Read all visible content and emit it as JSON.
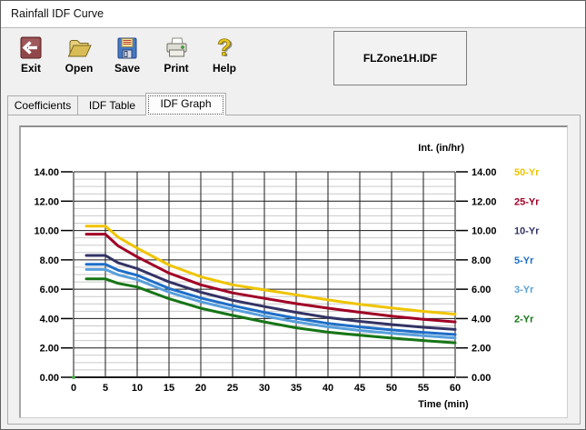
{
  "window": {
    "title": "Rainfall IDF Curve"
  },
  "toolbar": {
    "buttons": [
      {
        "label": "Exit"
      },
      {
        "label": "Open"
      },
      {
        "label": "Save"
      },
      {
        "label": "Print"
      },
      {
        "label": "Help"
      }
    ],
    "filename": "FLZone1H.IDF"
  },
  "tabs": [
    {
      "label": "Coefficients",
      "active": false
    },
    {
      "label": "IDF Table",
      "active": false
    },
    {
      "label": "IDF Graph",
      "active": true
    }
  ],
  "chart_data": {
    "type": "line",
    "y_axis_title": "Int. (in/hr)",
    "xlabel": "Time (min)",
    "ylim": [
      0,
      14
    ],
    "xlim": [
      0,
      60
    ],
    "y_major_step": 2,
    "y_minor_step": 0.5,
    "x_step": 5,
    "grid": true,
    "legend_position": "right",
    "y_ticks": [
      {
        "label": "14.00",
        "value": 14
      },
      {
        "label": "12.00",
        "value": 12
      },
      {
        "label": "10.00",
        "value": 10
      },
      {
        "label": "8.00",
        "value": 8
      },
      {
        "label": "6.00",
        "value": 6
      },
      {
        "label": "4.00",
        "value": 4
      },
      {
        "label": "2.00",
        "value": 2
      },
      {
        "label": "0.00",
        "value": 0
      }
    ],
    "x_ticks": [
      {
        "label": "0",
        "value": 0
      },
      {
        "label": "5",
        "value": 5
      },
      {
        "label": "10",
        "value": 10
      },
      {
        "label": "15",
        "value": 15
      },
      {
        "label": "20",
        "value": 20
      },
      {
        "label": "25",
        "value": 25
      },
      {
        "label": "30",
        "value": 30
      },
      {
        "label": "35",
        "value": 35
      },
      {
        "label": "40",
        "value": 40
      },
      {
        "label": "45",
        "value": 45
      },
      {
        "label": "50",
        "value": 50
      },
      {
        "label": "55",
        "value": 55
      },
      {
        "label": "60",
        "value": 60
      }
    ],
    "x": [
      2,
      5,
      7,
      10,
      15,
      20,
      25,
      30,
      35,
      40,
      45,
      50,
      55,
      60
    ],
    "series": [
      {
        "name": "50-Yr",
        "color": "#EFC400",
        "values": [
          10.3,
          10.3,
          9.55,
          8.8,
          7.65,
          6.85,
          6.3,
          5.95,
          5.62,
          5.27,
          4.97,
          4.72,
          4.49,
          4.3
        ]
      },
      {
        "name": "25-Yr",
        "color": "#A00025",
        "values": [
          9.75,
          9.75,
          8.95,
          8.2,
          7.1,
          6.3,
          5.75,
          5.38,
          5.02,
          4.71,
          4.43,
          4.16,
          3.95,
          3.77
        ]
      },
      {
        "name": "10-Yr",
        "color": "#333366",
        "values": [
          8.3,
          8.3,
          7.8,
          7.4,
          6.5,
          5.8,
          5.25,
          4.82,
          4.42,
          4.07,
          3.81,
          3.59,
          3.41,
          3.26
        ]
      },
      {
        "name": "5-Yr",
        "color": "#1E6EC8",
        "values": [
          7.7,
          7.7,
          7.3,
          6.95,
          6.05,
          5.4,
          4.88,
          4.42,
          4.02,
          3.67,
          3.43,
          3.23,
          3.06,
          2.91
        ]
      },
      {
        "name": "3-Yr",
        "color": "#58A0DC",
        "values": [
          7.35,
          7.35,
          6.98,
          6.65,
          5.8,
          5.15,
          4.63,
          4.17,
          3.77,
          3.44,
          3.19,
          3.0,
          2.84,
          2.68
        ]
      },
      {
        "name": "2-Yr",
        "color": "#167516",
        "values": [
          6.7,
          6.7,
          6.4,
          6.15,
          5.35,
          4.7,
          4.22,
          3.77,
          3.37,
          3.07,
          2.86,
          2.67,
          2.5,
          2.35
        ]
      }
    ]
  }
}
